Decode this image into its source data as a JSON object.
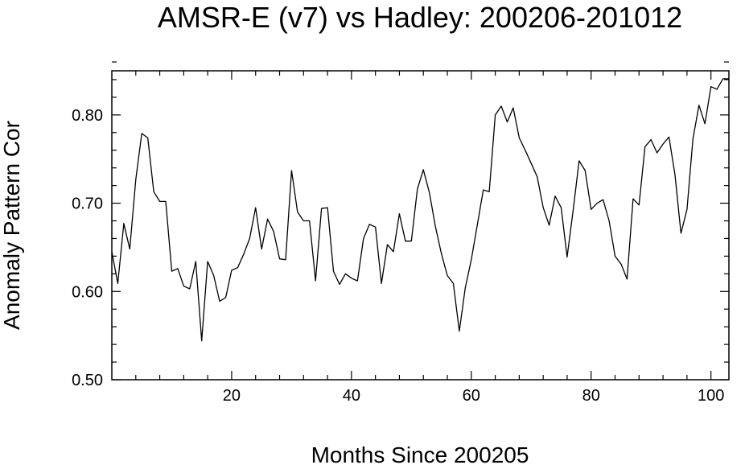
{
  "chart_data": {
    "type": "line",
    "title": "AMSR-E (v7) vs Hadley: 200206-201012",
    "xlabel": "Months Since 200205",
    "ylabel": "Anomaly Pattern Cor",
    "xlim": [
      0,
      103
    ],
    "ylim": [
      0.5,
      0.85
    ],
    "x_ticks": [
      20,
      40,
      60,
      80,
      100
    ],
    "x_tick_labels": [
      "20",
      "40",
      "60",
      "80",
      "100"
    ],
    "y_ticks": [
      0.5,
      0.6,
      0.7,
      0.8
    ],
    "y_tick_labels": [
      "0.50",
      "0.60",
      "0.70",
      "0.80"
    ],
    "x_minor_step": 4,
    "y_minor_step": 0.02,
    "grid": false,
    "series": [
      {
        "x": [
          0,
          1,
          2,
          3,
          4,
          5,
          6,
          7,
          8,
          9,
          10,
          11,
          12,
          13,
          14,
          15,
          16,
          17,
          18,
          19,
          20,
          21,
          22,
          23,
          24,
          25,
          26,
          27,
          28,
          29,
          30,
          31,
          32,
          33,
          34,
          35,
          36,
          37,
          38,
          39,
          40,
          41,
          42,
          43,
          44,
          45,
          46,
          47,
          48,
          49,
          50,
          51,
          52,
          53,
          54,
          55,
          56,
          57,
          58,
          59,
          60,
          61,
          62,
          63,
          64,
          65,
          66,
          67,
          68,
          69,
          70,
          71,
          72,
          73,
          74,
          75,
          76,
          77,
          78,
          79,
          80,
          81,
          82,
          83,
          84,
          85,
          86,
          87,
          88,
          89,
          90,
          91,
          92,
          93,
          94,
          95,
          96,
          97,
          98,
          99,
          100,
          101,
          102,
          103
        ],
        "y": [
          0.645,
          0.609,
          0.677,
          0.648,
          0.727,
          0.779,
          0.774,
          0.713,
          0.702,
          0.702,
          0.623,
          0.626,
          0.606,
          0.603,
          0.634,
          0.544,
          0.634,
          0.618,
          0.589,
          0.593,
          0.624,
          0.627,
          0.642,
          0.66,
          0.695,
          0.648,
          0.682,
          0.668,
          0.637,
          0.636,
          0.737,
          0.69,
          0.68,
          0.68,
          0.612,
          0.694,
          0.695,
          0.623,
          0.608,
          0.62,
          0.615,
          0.612,
          0.66,
          0.676,
          0.673,
          0.609,
          0.653,
          0.645,
          0.688,
          0.657,
          0.657,
          0.716,
          0.738,
          0.712,
          0.674,
          0.643,
          0.618,
          0.609,
          0.555,
          0.604,
          0.636,
          0.675,
          0.715,
          0.713,
          0.8,
          0.81,
          0.792,
          0.808,
          0.774,
          0.76,
          0.745,
          0.73,
          0.695,
          0.675,
          0.708,
          0.695,
          0.639,
          0.692,
          0.748,
          0.737,
          0.693,
          0.7,
          0.704,
          0.68,
          0.64,
          0.631,
          0.614,
          0.705,
          0.698,
          0.764,
          0.772,
          0.757,
          0.767,
          0.775,
          0.732,
          0.666,
          0.693,
          0.773,
          0.811,
          0.79,
          0.832,
          0.829,
          0.841,
          0.841
        ]
      }
    ]
  }
}
